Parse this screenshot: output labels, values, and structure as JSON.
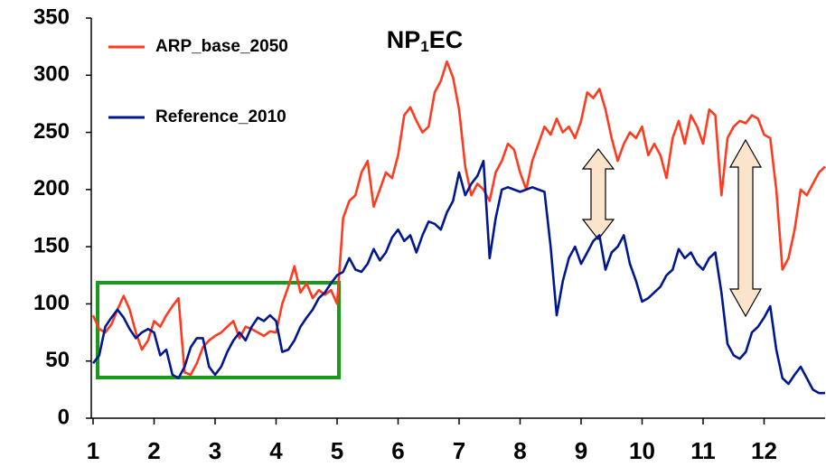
{
  "chart_data": {
    "type": "line",
    "title": "NP1EC",
    "x": [
      1.0,
      1.1,
      1.2,
      1.3,
      1.4,
      1.5,
      1.6,
      1.7,
      1.8,
      1.9,
      2.0,
      2.1,
      2.2,
      2.3,
      2.4,
      2.5,
      2.6,
      2.7,
      2.8,
      2.9,
      3.0,
      3.1,
      3.2,
      3.3,
      3.4,
      3.5,
      3.6,
      3.7,
      3.8,
      3.9,
      4.0,
      4.1,
      4.2,
      4.3,
      4.4,
      4.5,
      4.6,
      4.7,
      4.8,
      4.9,
      5.0,
      5.1,
      5.2,
      5.3,
      5.4,
      5.5,
      5.6,
      5.7,
      5.8,
      5.9,
      6.0,
      6.1,
      6.2,
      6.3,
      6.4,
      6.5,
      6.6,
      6.7,
      6.8,
      6.9,
      7.0,
      7.1,
      7.2,
      7.3,
      7.4,
      7.5,
      7.6,
      7.7,
      7.8,
      7.9,
      8.0,
      8.1,
      8.2,
      8.3,
      8.4,
      8.5,
      8.6,
      8.7,
      8.8,
      8.9,
      9.0,
      9.1,
      9.2,
      9.3,
      9.4,
      9.5,
      9.6,
      9.7,
      9.8,
      9.9,
      10.0,
      10.1,
      10.2,
      10.3,
      10.4,
      10.5,
      10.6,
      10.7,
      10.8,
      10.9,
      11.0,
      11.1,
      11.2,
      11.3,
      11.4,
      11.5,
      11.6,
      11.7,
      11.8,
      11.9,
      12.0,
      12.1,
      12.2,
      12.3,
      12.4,
      12.5,
      12.6,
      12.7,
      12.8,
      12.9,
      13.0
    ],
    "series": [
      {
        "name": "ARP_base_2050",
        "color": "#ff3b1f",
        "values": [
          90,
          78,
          75,
          82,
          95,
          107,
          95,
          75,
          60,
          68,
          85,
          80,
          90,
          98,
          105,
          40,
          38,
          48,
          62,
          68,
          72,
          75,
          80,
          85,
          70,
          80,
          78,
          75,
          72,
          76,
          75,
          100,
          115,
          133,
          110,
          118,
          105,
          112,
          108,
          112,
          100,
          175,
          190,
          195,
          215,
          225,
          185,
          200,
          215,
          210,
          230,
          265,
          272,
          260,
          250,
          255,
          285,
          295,
          312,
          298,
          270,
          220,
          195,
          205,
          200,
          190,
          215,
          225,
          240,
          235,
          215,
          200,
          225,
          240,
          255,
          248,
          262,
          250,
          255,
          245,
          260,
          285,
          280,
          288,
          270,
          245,
          225,
          240,
          250,
          245,
          255,
          230,
          240,
          230,
          210,
          245,
          260,
          240,
          265,
          255,
          240,
          270,
          265,
          195,
          245,
          255,
          260,
          258,
          265,
          262,
          248,
          245,
          200,
          130,
          140,
          165,
          200,
          195,
          205,
          215,
          220
        ]
      },
      {
        "name": "Reference_2010",
        "color": "#00188f",
        "values": [
          48,
          55,
          80,
          88,
          95,
          88,
          78,
          70,
          75,
          78,
          75,
          55,
          60,
          38,
          35,
          45,
          62,
          70,
          70,
          45,
          38,
          45,
          58,
          68,
          75,
          68,
          80,
          88,
          85,
          90,
          85,
          58,
          60,
          68,
          80,
          88,
          95,
          105,
          110,
          118,
          125,
          128,
          140,
          130,
          128,
          135,
          148,
          138,
          145,
          158,
          165,
          155,
          160,
          145,
          160,
          172,
          170,
          165,
          180,
          190,
          215,
          195,
          205,
          212,
          225,
          140,
          175,
          200,
          202,
          200,
          198,
          200,
          202,
          200,
          198,
          150,
          90,
          120,
          140,
          150,
          135,
          145,
          155,
          160,
          130,
          145,
          150,
          160,
          135,
          120,
          102,
          105,
          110,
          115,
          125,
          130,
          148,
          140,
          145,
          135,
          130,
          140,
          145,
          110,
          65,
          55,
          52,
          58,
          75,
          80,
          88,
          98,
          60,
          35,
          30,
          38,
          45,
          35,
          25,
          22,
          22
        ]
      }
    ],
    "xlim": [
      1,
      13
    ],
    "xticks": [
      1,
      2,
      3,
      4,
      5,
      6,
      7,
      8,
      9,
      10,
      11,
      12
    ],
    "ylim": [
      0,
      350
    ],
    "yticks": [
      0,
      50,
      100,
      150,
      200,
      250,
      300,
      350
    ],
    "legend": "upper-left"
  }
}
